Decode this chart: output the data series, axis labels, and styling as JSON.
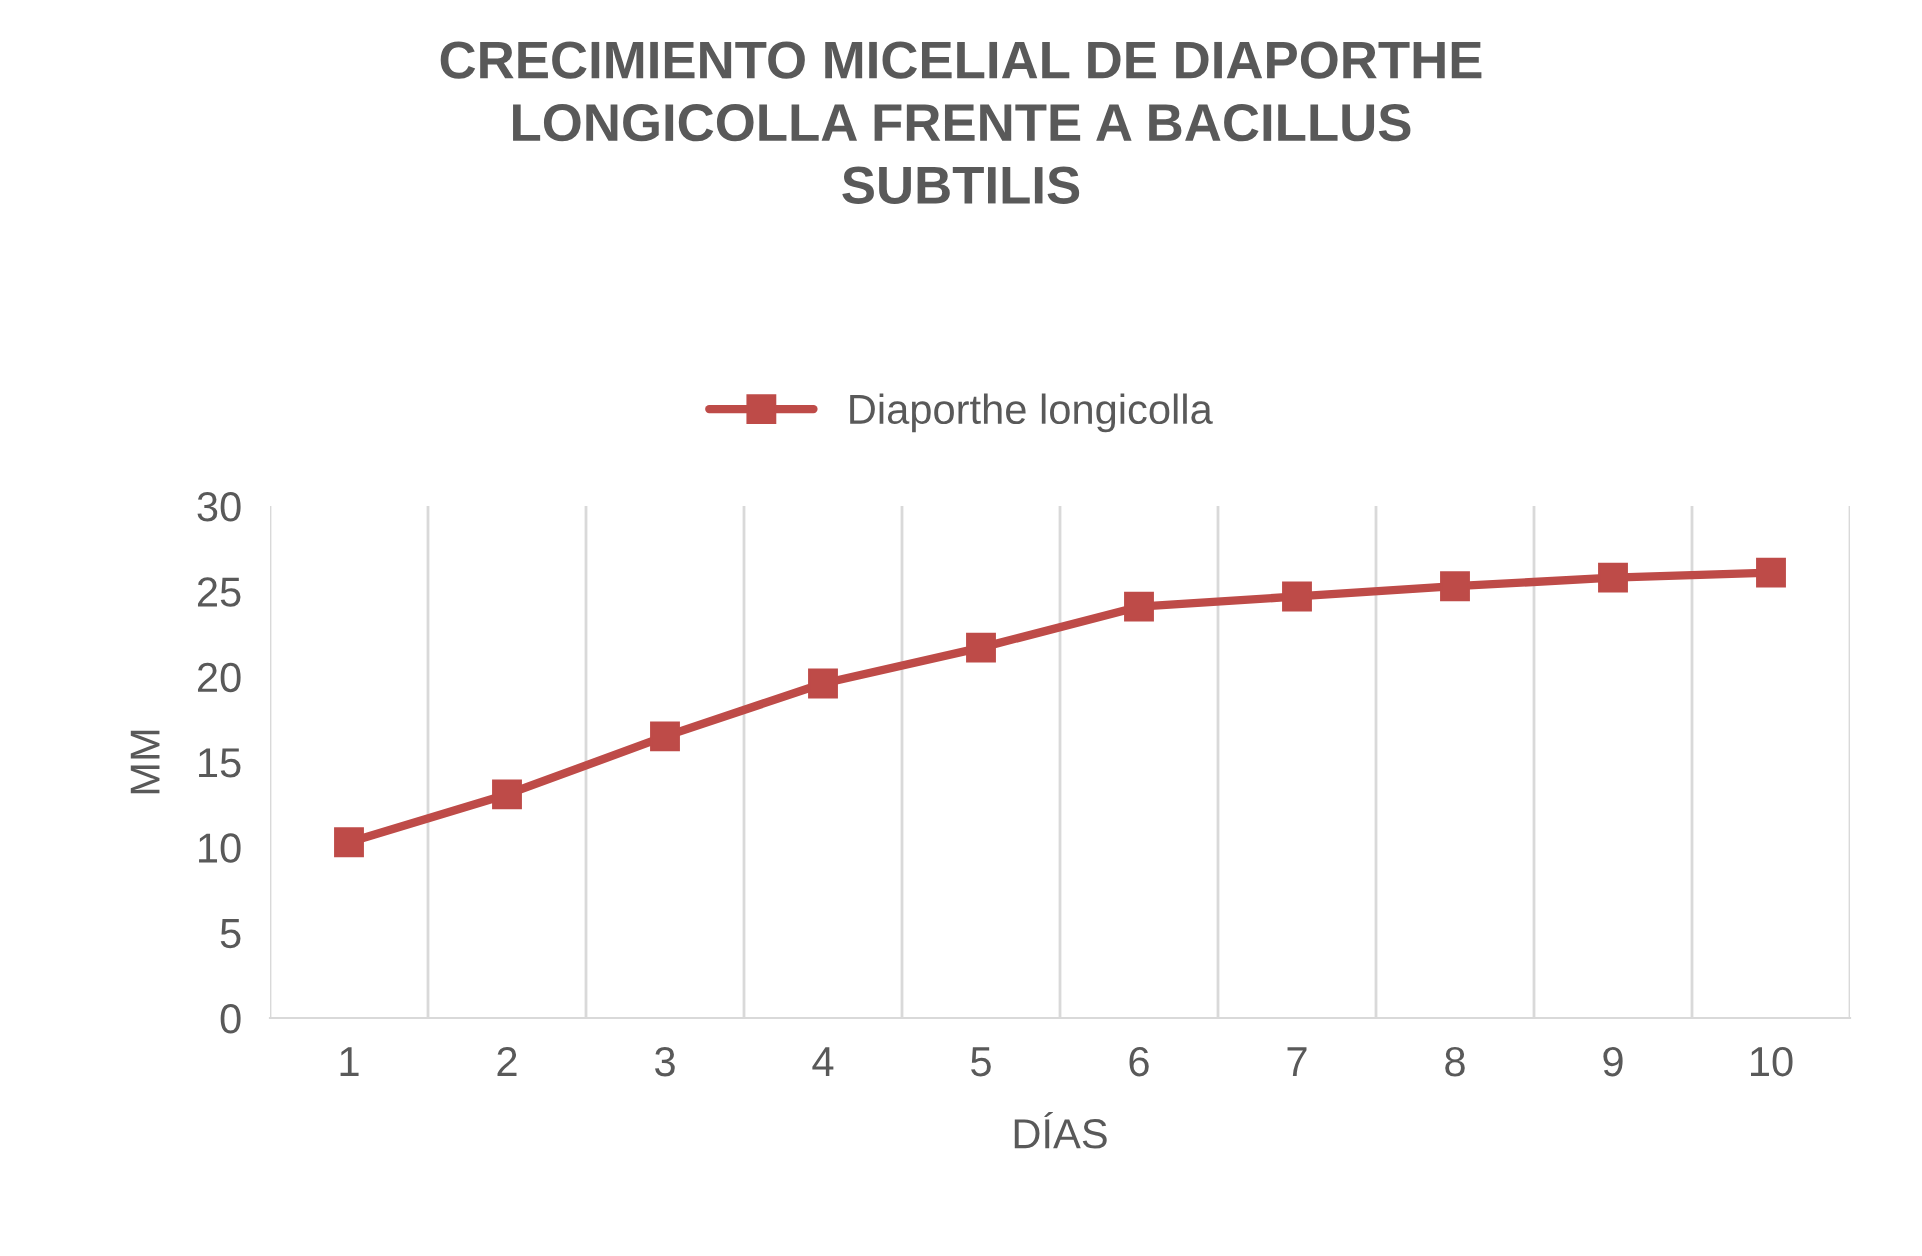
{
  "chart_data": {
    "type": "line",
    "title": "CRECIMIENTO MICELIAL DE DIAPORTHE\nLONGICOLLA FRENTE A BACILLUS\nSUBTILIS",
    "xlabel": "DÍAS",
    "ylabel": "MM",
    "categories": [
      "1",
      "2",
      "3",
      "4",
      "5",
      "6",
      "7",
      "8",
      "9",
      "10"
    ],
    "series": [
      {
        "name": "Diaporthe longicolla",
        "color": "#be4b48",
        "values": [
          10.3,
          13.1,
          16.5,
          19.6,
          21.7,
          24.1,
          24.7,
          25.3,
          25.8,
          26.1
        ]
      }
    ],
    "ylim": [
      0,
      30
    ],
    "yticks": [
      0,
      5,
      10,
      15,
      20,
      25,
      30
    ],
    "grid": "x",
    "legend": "top",
    "marker": "square",
    "line_style": "solid"
  }
}
